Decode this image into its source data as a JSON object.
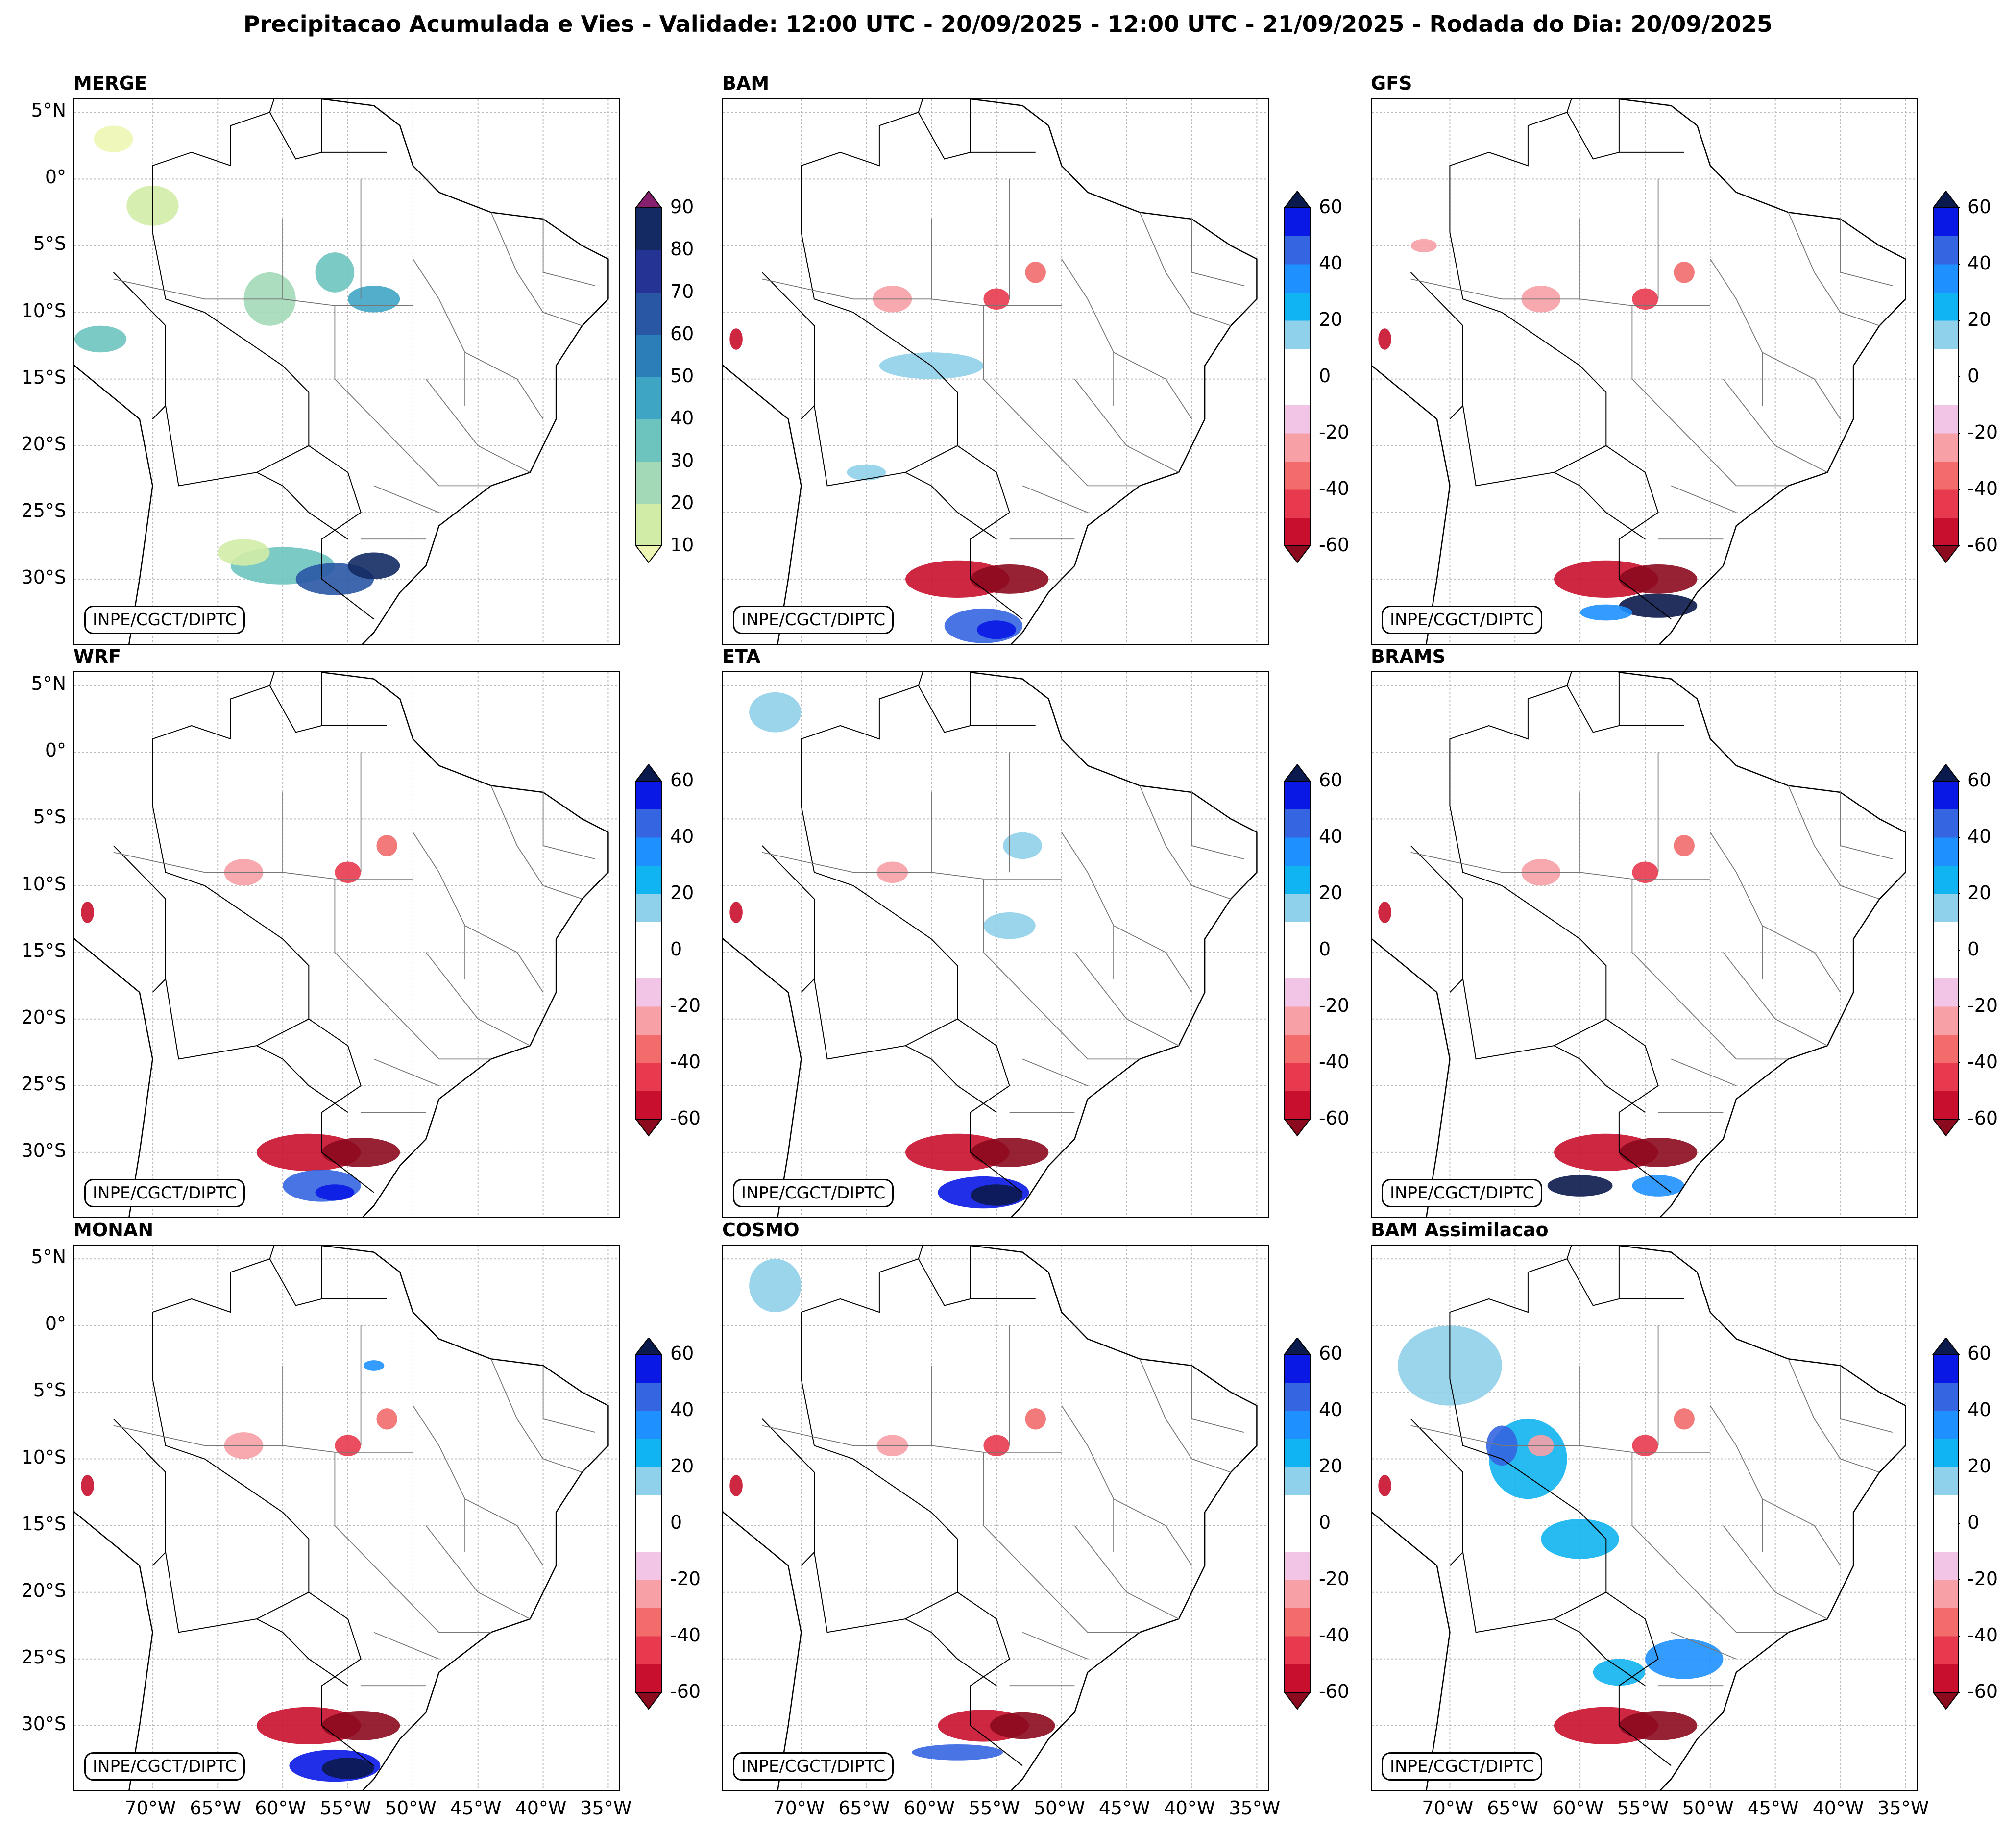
{
  "title": "Precipitacao Acumulada e Vies - Validade: 12:00 UTC - 20/09/2025 - 12:00 UTC - 21/09/2025 - Rodada do Dia: 20/09/2025",
  "credit": "INPE/CGCT/DIPTC",
  "lat_labels": [
    "5°N",
    "0°",
    "5°S",
    "10°S",
    "15°S",
    "20°S",
    "25°S",
    "30°S"
  ],
  "lon_labels": [
    "70°W",
    "65°W",
    "60°W",
    "55°W",
    "50°W",
    "45°W",
    "40°W",
    "35°W"
  ],
  "precip_colorbar": {
    "ticks": [
      "90",
      "80",
      "70",
      "60",
      "50",
      "40",
      "30",
      "20",
      "10"
    ],
    "colors": [
      "#eef6b3",
      "#d1eca6",
      "#a4d9b8",
      "#6dc4bf",
      "#3fa5c4",
      "#2c7eb8",
      "#2a57a4",
      "#253494",
      "#132a63",
      "#86206e"
    ]
  },
  "bias_colorbar": {
    "ticks": [
      "60",
      "40",
      "20",
      "0",
      "-20",
      "-40",
      "-60"
    ],
    "colors": [
      "#8b0a1e",
      "#c80f2e",
      "#e83a4e",
      "#f26c6c",
      "#f7a0a6",
      "#f2c4e6",
      "#ffffff",
      "#ffffff",
      "#8fd0ea",
      "#10b4f0",
      "#1e90ff",
      "#3565e0",
      "#0a18e6",
      "#0b1a4c"
    ]
  },
  "panels": [
    {
      "title": "MERGE",
      "kind": "precip"
    },
    {
      "title": "BAM",
      "kind": "bias"
    },
    {
      "title": "GFS",
      "kind": "bias"
    },
    {
      "title": "WRF",
      "kind": "bias"
    },
    {
      "title": "ETA",
      "kind": "bias"
    },
    {
      "title": "BRAMS",
      "kind": "bias"
    },
    {
      "title": "MONAN",
      "kind": "bias"
    },
    {
      "title": "COSMO",
      "kind": "bias"
    },
    {
      "title": "BAM Assimilacao",
      "kind": "bias"
    }
  ]
}
